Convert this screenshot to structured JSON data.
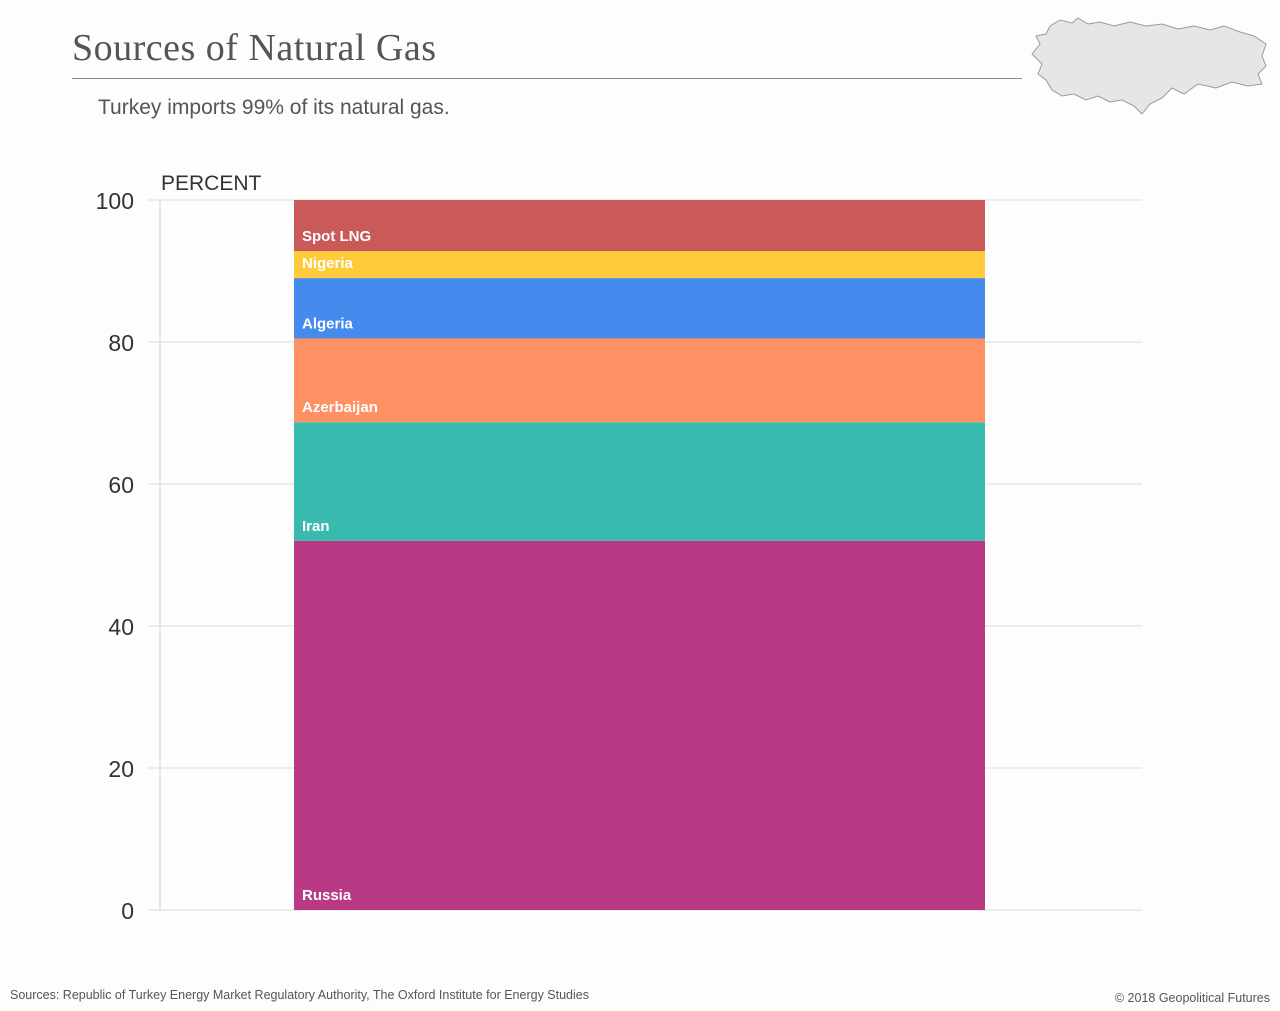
{
  "header": {
    "title": "Sources of Natural Gas",
    "subtitle": "Turkey imports 99% of its natural gas."
  },
  "map": {
    "icon": "turkey-map-icon",
    "fill": "#e6e6e6",
    "stroke": "#9a9a9a"
  },
  "footer": {
    "sources": "Sources: Republic of Turkey Energy Market Regulatory Authority, The Oxford Institute for Energy Studies",
    "copyright": "© 2018 Geopolitical Futures"
  },
  "chart_data": {
    "type": "bar",
    "stacked": true,
    "ylabel": "PERCENT",
    "ylim": [
      0,
      100
    ],
    "yticks": [
      0,
      20,
      40,
      60,
      80,
      100
    ],
    "grid": true,
    "series": [
      {
        "name": "Russia",
        "value": 52,
        "color": "#b73380"
      },
      {
        "name": "Iran",
        "value": 16.7,
        "color": "#32b8ac"
      },
      {
        "name": "Azerbaijan",
        "value": 11.8,
        "color": "#ff8c5f"
      },
      {
        "name": "Algeria",
        "value": 8.5,
        "color": "#3f86ec"
      },
      {
        "name": "Nigeria",
        "value": 3.8,
        "color": "#ffc935"
      },
      {
        "name": "Spot LNG",
        "value": 7.2,
        "color": "#c85555"
      }
    ]
  }
}
